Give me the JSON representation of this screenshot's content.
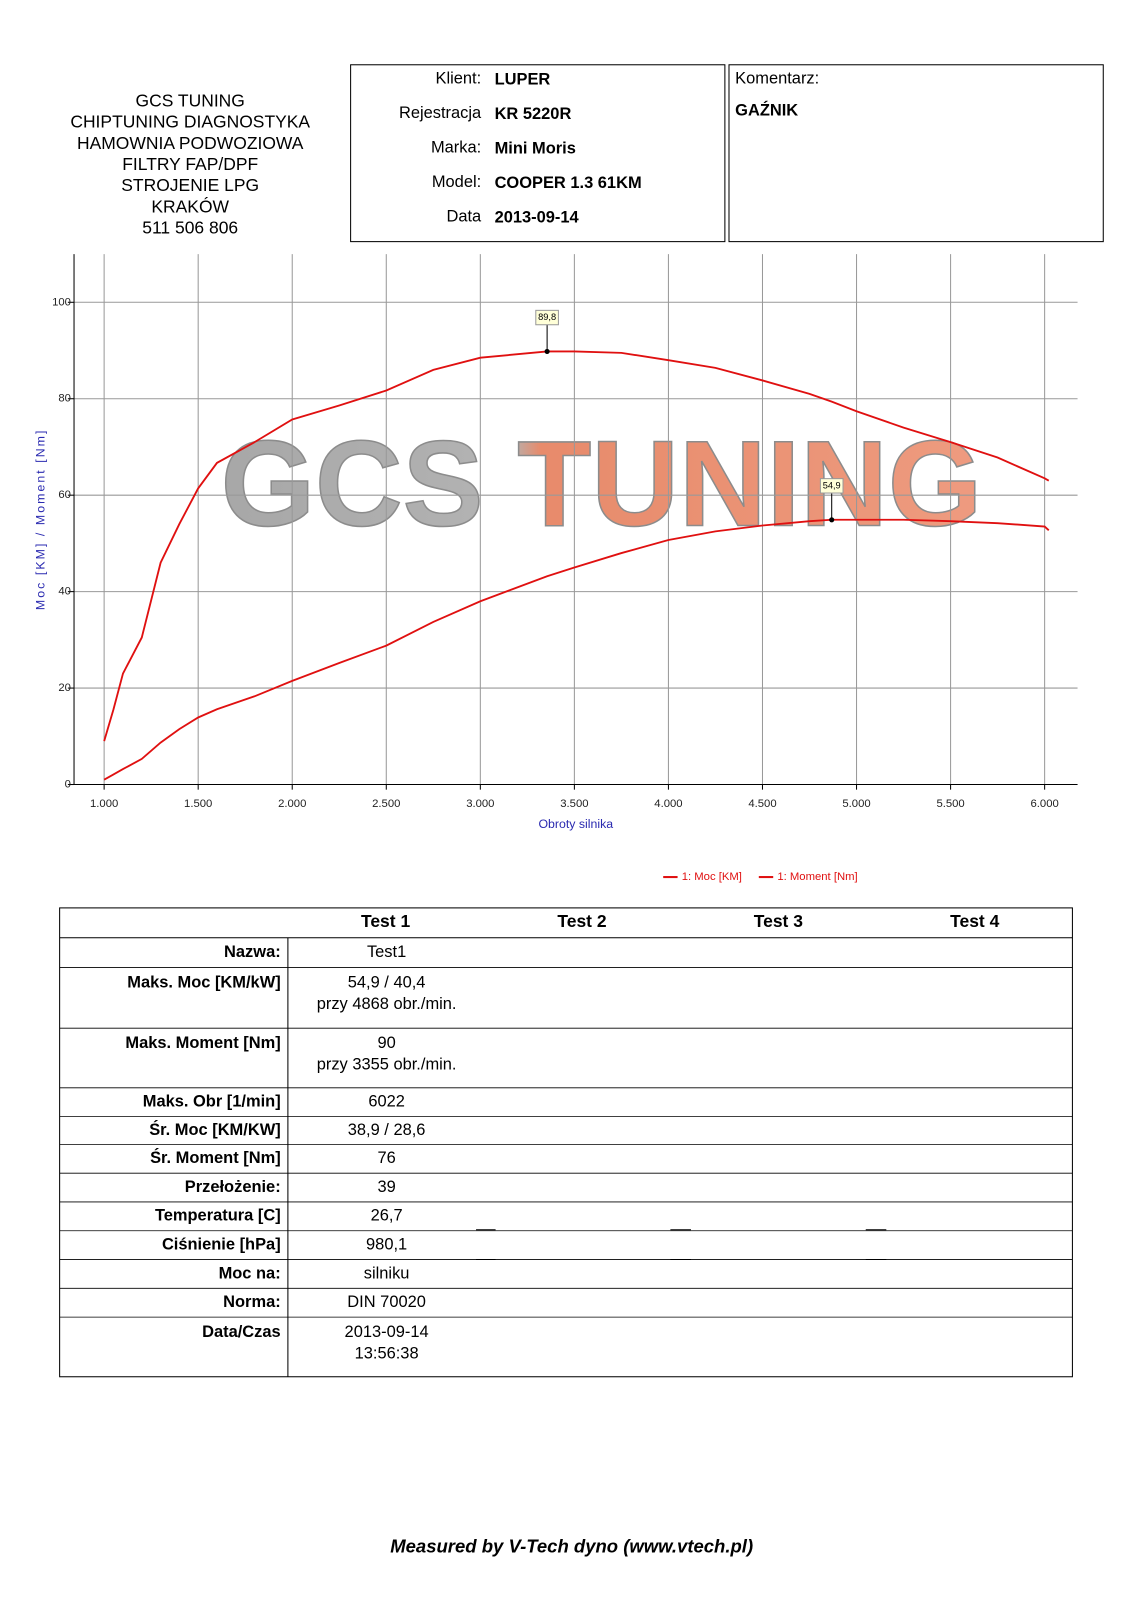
{
  "header": {
    "lines": [
      "GCS TUNING",
      "CHIPTUNING DIAGNOSTYKA",
      "HAMOWNIA PODWOZIOWA",
      "FILTRY FAP/DPF",
      "STROJENIE LPG",
      "KRAKÓW",
      "511 506 806"
    ]
  },
  "info": {
    "rows": [
      {
        "label": "Klient:",
        "value": "LUPER"
      },
      {
        "label": "Rejestracja",
        "value": "KR 5220R"
      },
      {
        "label": "Marka:",
        "value": "Mini Moris"
      },
      {
        "label": "Model:",
        "value": "COOPER 1.3 61KM"
      },
      {
        "label": "Data",
        "value": "2013-09-14"
      }
    ]
  },
  "comment": {
    "label": "Komentarz:",
    "value": "GAŹNIK"
  },
  "chart_data": {
    "type": "line",
    "watermark": "GCS TUNING",
    "y_label": "Moc [KM] / Moment [Nm]",
    "x_label": "Obroty silnika",
    "x": [
      1000,
      1050,
      1100,
      1200,
      1300,
      1400,
      1500,
      1600,
      1800,
      2000,
      2250,
      2500,
      2750,
      3000,
      3355,
      3500,
      3750,
      4000,
      4250,
      4500,
      4750,
      4868,
      5000,
      5250,
      5500,
      5750,
      6000,
      6022
    ],
    "series": [
      {
        "name": "1: Moc [KM]",
        "color": "#e01010",
        "values": [
          1,
          2.1,
          3.2,
          5.3,
          8.7,
          11.5,
          13.9,
          15.6,
          18.3,
          21.5,
          25.2,
          28.8,
          33.7,
          38,
          43.2,
          45,
          48,
          50.7,
          52.5,
          53.7,
          54.6,
          54.9,
          54.9,
          54.9,
          54.6,
          54.2,
          53.5,
          52.7
        ]
      },
      {
        "name": "1: Moment [Nm]",
        "color": "#e01010",
        "values": [
          9,
          15.6,
          23,
          30.5,
          46,
          54,
          61.4,
          66.7,
          71,
          75.7,
          78.6,
          81.7,
          86,
          88.5,
          89.8,
          89.8,
          89.5,
          88,
          86.4,
          83.8,
          81,
          79.4,
          77.4,
          74,
          71,
          67.8,
          63.5,
          63
        ]
      }
    ],
    "annotations": [
      {
        "x": 3355,
        "y": 89.8,
        "label": "89,8"
      },
      {
        "x": 4868,
        "y": 54.9,
        "label": "54,9"
      }
    ],
    "xlim": [
      840,
      6175
    ],
    "ylim": [
      0,
      110
    ],
    "xticks": [
      {
        "value": 1000,
        "label": "1.000"
      },
      {
        "value": 1500,
        "label": "1.500"
      },
      {
        "value": 2000,
        "label": "2.000"
      },
      {
        "value": 2500,
        "label": "2.500"
      },
      {
        "value": 3000,
        "label": "3.000"
      },
      {
        "value": 3500,
        "label": "3.500"
      },
      {
        "value": 4000,
        "label": "4.000"
      },
      {
        "value": 4500,
        "label": "4.500"
      },
      {
        "value": 5000,
        "label": "5.000"
      },
      {
        "value": 5500,
        "label": "5.500"
      },
      {
        "value": 6000,
        "label": "6.000"
      }
    ],
    "yticks": [
      0,
      20,
      40,
      60,
      80,
      100
    ],
    "grid": true,
    "legend": "bottom-right"
  },
  "table": {
    "columns": [
      "Test 1",
      "Test 2",
      "Test 3",
      "Test 4"
    ],
    "rows": [
      {
        "label": "Nazwa:",
        "value": [
          "Test1"
        ]
      },
      {
        "label": "Maks. Moc [KM/kW]",
        "value": [
          "54,9 / 40,4",
          "przy 4868 obr./min."
        ]
      },
      {
        "label": "Maks. Moment [Nm]",
        "value": [
          "90",
          "przy 3355 obr./min."
        ]
      },
      {
        "label": "Maks. Obr [1/min]",
        "value": [
          "6022"
        ]
      },
      {
        "label": "Śr. Moc [KM/KW]",
        "value": [
          "38,9 / 28,6"
        ]
      },
      {
        "label": "Śr. Moment [Nm]",
        "value": [
          "76"
        ]
      },
      {
        "label": "Przełożenie:",
        "value": [
          "39"
        ]
      },
      {
        "label": "Temperatura [C]",
        "value": [
          "26,7"
        ]
      },
      {
        "label": "Ciśnienie [hPa]",
        "value": [
          "980,1"
        ]
      },
      {
        "label": "Moc na:",
        "value": [
          "silniku"
        ]
      },
      {
        "label": "Norma:",
        "value": [
          "DIN 70020"
        ]
      },
      {
        "label": "Data/Czas",
        "value": [
          "2013-09-14",
          "13:56:38"
        ]
      }
    ]
  },
  "footer": "Measured by V-Tech dyno (www.vtech.pl)"
}
